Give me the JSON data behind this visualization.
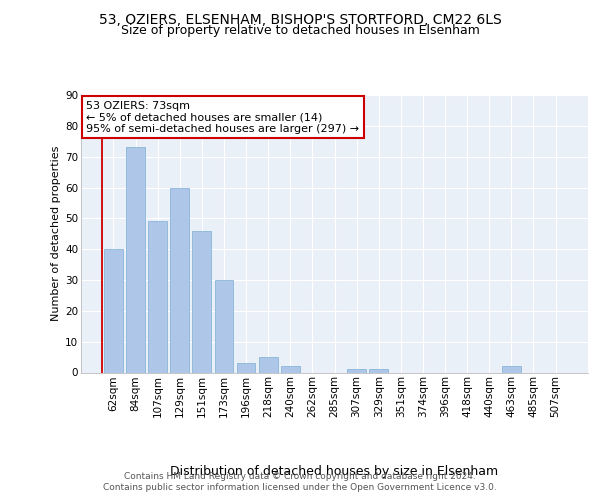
{
  "title1": "53, OZIERS, ELSENHAM, BISHOP'S STORTFORD, CM22 6LS",
  "title2": "Size of property relative to detached houses in Elsenham",
  "xlabel": "Distribution of detached houses by size in Elsenham",
  "ylabel": "Number of detached properties",
  "categories": [
    "62sqm",
    "84sqm",
    "107sqm",
    "129sqm",
    "151sqm",
    "173sqm",
    "196sqm",
    "218sqm",
    "240sqm",
    "262sqm",
    "285sqm",
    "307sqm",
    "329sqm",
    "351sqm",
    "374sqm",
    "396sqm",
    "418sqm",
    "440sqm",
    "463sqm",
    "485sqm",
    "507sqm"
  ],
  "values": [
    40,
    73,
    49,
    60,
    46,
    30,
    3,
    5,
    2,
    0,
    0,
    1,
    1,
    0,
    0,
    0,
    0,
    0,
    2,
    0,
    0
  ],
  "bar_color": "#aec6e8",
  "bar_edge_color": "#7bafd4",
  "annotation_text": "53 OZIERS: 73sqm\n← 5% of detached houses are smaller (14)\n95% of semi-detached houses are larger (297) →",
  "box_facecolor": "#ffffff",
  "box_edgecolor": "#cc0000",
  "redline_x": -0.5,
  "ylim": [
    0,
    90
  ],
  "yticks": [
    0,
    10,
    20,
    30,
    40,
    50,
    60,
    70,
    80,
    90
  ],
  "bg_color": "#eaf0f8",
  "grid_color": "#ffffff",
  "footer1": "Contains HM Land Registry data © Crown copyright and database right 2024.",
  "footer2": "Contains public sector information licensed under the Open Government Licence v3.0.",
  "title_fontsize": 10,
  "subtitle_fontsize": 9,
  "ylabel_fontsize": 8,
  "xlabel_fontsize": 9,
  "tick_fontsize": 7.5,
  "annotation_fontsize": 8,
  "footer_fontsize": 6.5
}
